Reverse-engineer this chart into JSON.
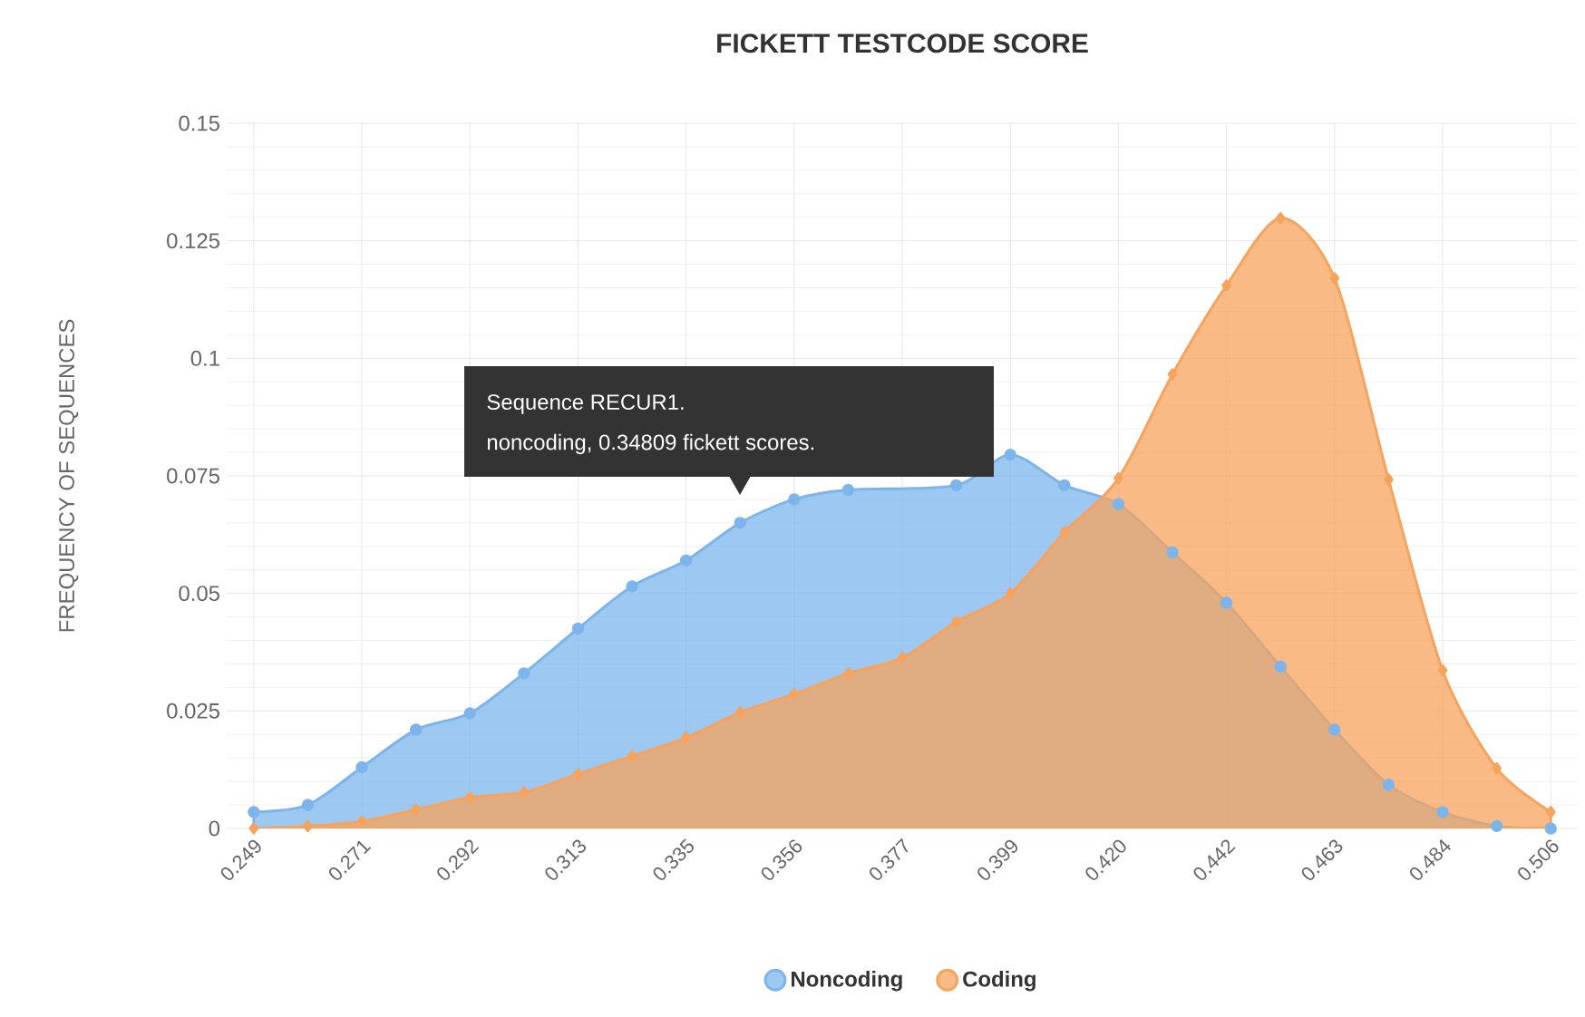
{
  "chart_data": {
    "type": "area",
    "title": "FICKETT TESTCODE SCORE",
    "ylabel": "FREQUENCY OF SEQUENCES",
    "categories": [
      "0.249",
      null,
      "0.271",
      null,
      "0.292",
      null,
      "0.313",
      null,
      "0.335",
      null,
      "0.356",
      null,
      "0.377",
      null,
      "0.399",
      null,
      "0.420",
      null,
      "0.442",
      null,
      "0.463",
      null,
      "0.484",
      null,
      "0.506"
    ],
    "series": [
      {
        "name": "Noncoding",
        "color": "#7cb5ec",
        "marker": "circle",
        "values": [
          0.0035,
          0.005,
          0.013,
          0.021,
          0.0245,
          0.033,
          0.0425,
          0.0515,
          0.057,
          0.065,
          0.07,
          0.072,
          null,
          0.073,
          0.0795,
          0.073,
          0.069,
          0.0587,
          0.048,
          0.0344,
          0.021,
          0.0093,
          0.0035,
          0.0005,
          0
        ]
      },
      {
        "name": "Coding",
        "color": "#f7a35c",
        "marker": "diamond",
        "values": [
          0,
          0.0005,
          0.0015,
          0.004,
          0.0066,
          0.0077,
          0.0116,
          0.0154,
          0.0193,
          0.0247,
          0.0286,
          0.033,
          0.0363,
          0.044,
          0.05,
          0.063,
          0.0745,
          0.0966,
          0.1155,
          0.1298,
          0.117,
          0.0742,
          0.0336,
          0.0128,
          0.0035
        ]
      }
    ],
    "ylim": [
      0,
      0.15
    ],
    "yticks": [
      0,
      0.025,
      0.05,
      0.075,
      0.1,
      0.125,
      0.15
    ],
    "grid": true,
    "legend": "bottom",
    "annotations": [
      "Sequence RECUR1.",
      "noncoding, 0.34809 fickett scores."
    ]
  }
}
